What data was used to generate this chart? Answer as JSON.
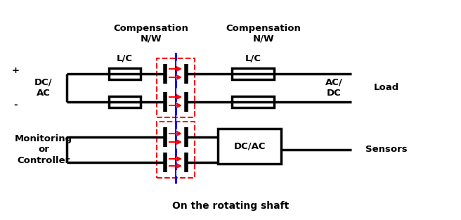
{
  "bg_color": "#ffffff",
  "text_color": "#000000",
  "line_color": "#000000",
  "red_color": "#ff0000",
  "blue_color": "#0000ff",
  "title": "On the rotating shaft",
  "comp_nw_left": "Compensation\nN/W",
  "comp_nw_right": "Compensation\nN/W",
  "label_plus": "+",
  "label_minus": "-",
  "label_dcac_left": "DC/\nAC",
  "label_lc_left": "L/C",
  "label_acdc": "AC/\nDC",
  "label_lc_right": "L/C",
  "label_load": "Load",
  "label_monitor": "Monitoring\nor\nController",
  "label_dcac_right": "DC/AC",
  "label_sensors": "Sensors",
  "figsize": [
    6.56,
    3.13
  ],
  "dpi": 100
}
